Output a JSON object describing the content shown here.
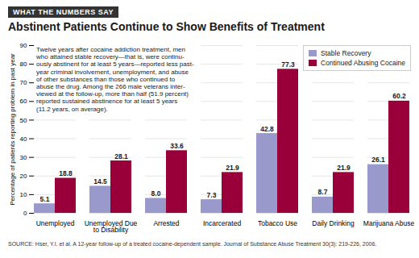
{
  "chart_data": {
    "type": "bar",
    "header": "WHAT THE NUMBERS SAY",
    "title": "Abstinent Patients Continue to Show Benefits of Treatment",
    "categories": [
      "Unemployed",
      "Unemployed Due\nto Disability",
      "Arrested",
      "Incarcerated",
      "Tobacco Use",
      "Daily Drinking",
      "Marijuana Abuse"
    ],
    "series": [
      {
        "name": "Stable Recovery",
        "color": "#9999cc",
        "values": [
          5.1,
          14.5,
          8.0,
          7.3,
          42.8,
          8.7,
          26.1
        ],
        "value_labels": [
          "5.1",
          "14.5",
          "8.0",
          "7.3",
          "42.8",
          "8.7",
          "26.1"
        ]
      },
      {
        "name": "Continued Abusing Cocaine",
        "color": "#99003a",
        "values": [
          18.8,
          28.1,
          33.6,
          21.9,
          77.3,
          21.9,
          60.2
        ],
        "value_labels": [
          "18.8",
          "28.1",
          "33.6",
          "21.9",
          "77.3",
          "21.9",
          "60.2"
        ]
      }
    ],
    "ylabel": "Percentage of patients reporting problem in past year",
    "ylim": [
      0,
      90
    ],
    "yticks": [
      0,
      10,
      20,
      30,
      40,
      50,
      60,
      70,
      80,
      90
    ],
    "grid": true,
    "legend": "upper right",
    "data_labels": true,
    "annotation": "Twelve years after cocaine addiction treatment, men\nwho attained stable recovery—that is, were continu-\nously abstinent for at least 5 years—reported less past-\nyear criminal involvement, unemployment, and abuse\nof other substances than those who continued to\nabuse the drug. Among the 266 male veterans inter-\nviewed at the follow-up, more than half (51.9 percent)\nreported sustained abstinence for at least 5 years\n(11.2 years, on average).",
    "source": "SOURCE: Hser, Y.I. et al. A 12-year follow-up of a treated cocaine-dependent sample. Journal of Substance Abuse Treatment 30(3): 219-226, 2006."
  }
}
